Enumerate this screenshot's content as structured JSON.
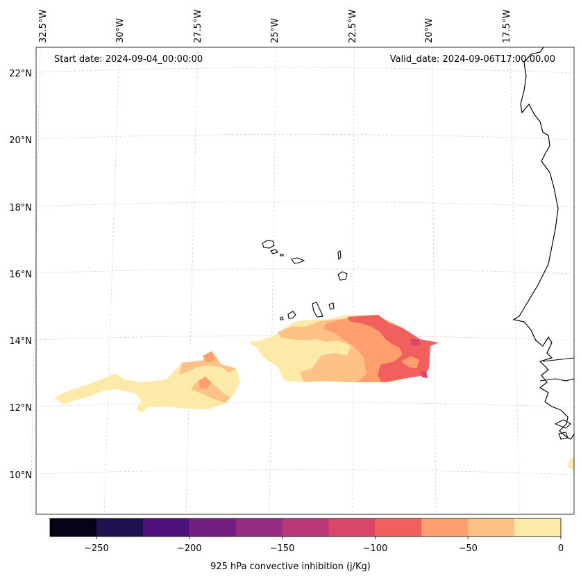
{
  "map": {
    "start_date_text": "Start date: 2024-09-04_00:00:00",
    "valid_date_text": "Valid_date: 2024-09-06T17:00:00.00",
    "longitude_labels": [
      "32.5°W",
      "30°W",
      "27.5°W",
      "25°W",
      "22.5°W",
      "20°W",
      "17.5°W"
    ],
    "latitude_labels": [
      "22°N",
      "20°N",
      "18°N",
      "16°N",
      "14°N",
      "12°N",
      "10°N"
    ]
  },
  "colorbar": {
    "label": "925 hPa convective inhibition (j/Kg)",
    "tick_labels": [
      "−250",
      "−200",
      "−150",
      "−100",
      "−50",
      "0"
    ],
    "colors": [
      "#050417",
      "#221150",
      "#4f127b",
      "#721f81",
      "#952c80",
      "#b73779",
      "#db476a",
      "#f1605d",
      "#fe9f6d",
      "#fec287",
      "#fde9a8"
    ]
  }
}
